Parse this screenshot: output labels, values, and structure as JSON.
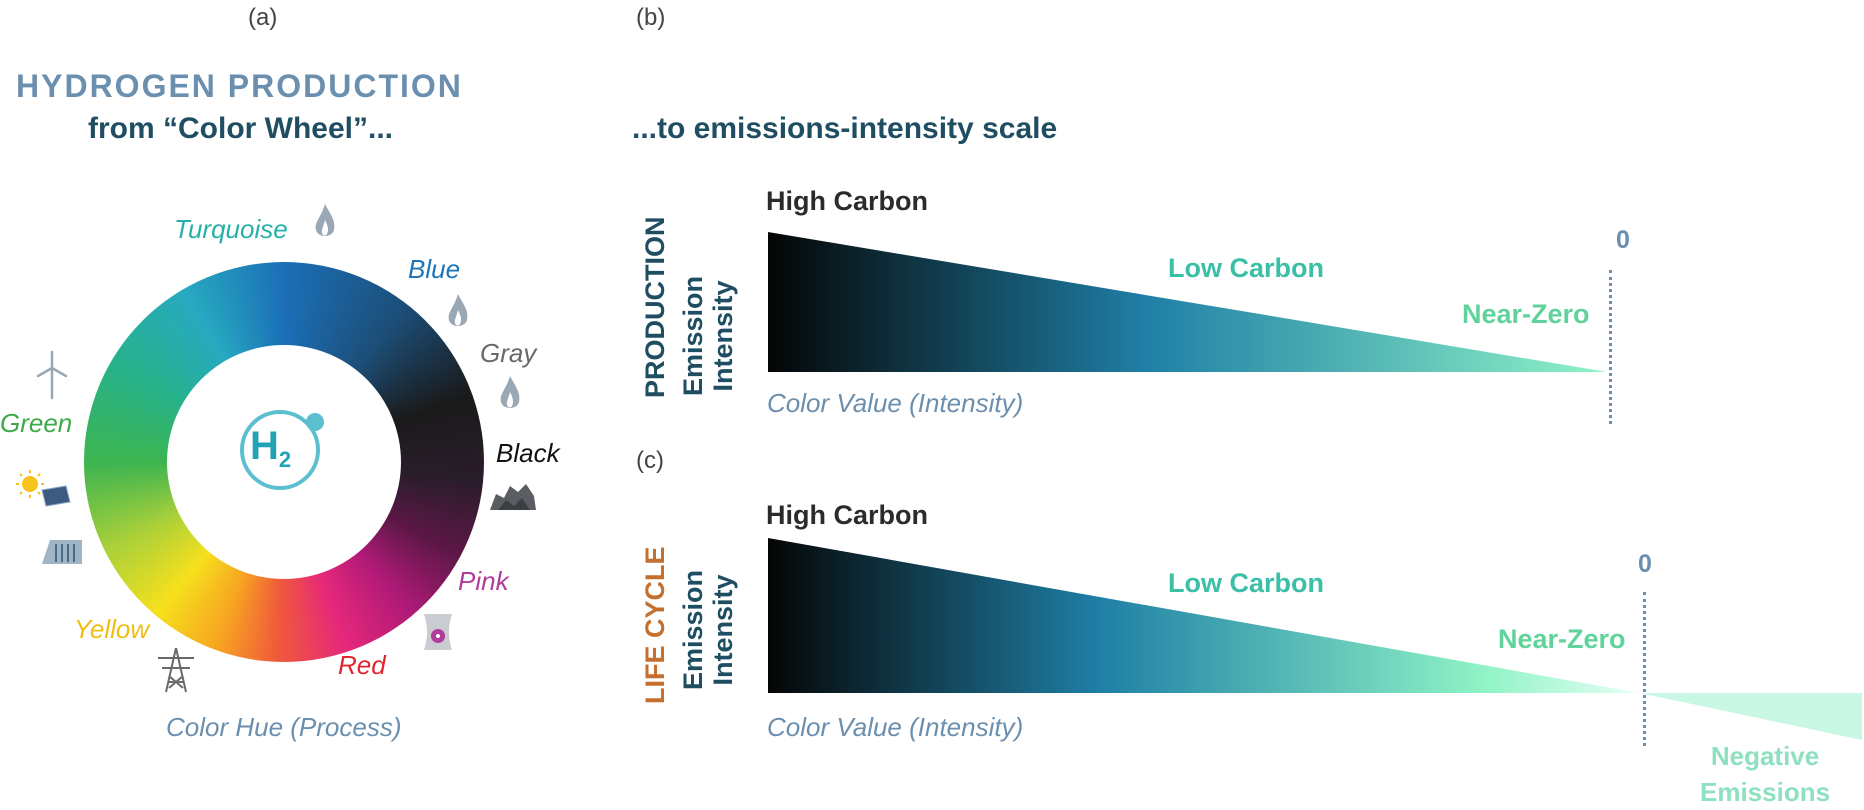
{
  "panel_labels": {
    "a": "(a)",
    "b": "(b)",
    "c": "(c)"
  },
  "left": {
    "title": "HYDROGEN PRODUCTION",
    "subtitle": "from “Color Wheel”...",
    "center_symbol": {
      "letter": "H",
      "subscript": "2"
    },
    "colors": [
      {
        "name": "Turquoise",
        "color": "#2bb3b0",
        "icon": "flame-icon"
      },
      {
        "name": "Blue",
        "color": "#1f74b6",
        "icon": "flame-icon"
      },
      {
        "name": "Gray",
        "color": "#6a6a6a",
        "icon": "flame-icon"
      },
      {
        "name": "Black",
        "color": "#111111",
        "icon": "coal-icon"
      },
      {
        "name": "Pink",
        "color": "#b03c9b",
        "icon": "nuclear-plant-icon"
      },
      {
        "name": "Red",
        "color": "#e0262e",
        "icon": ""
      },
      {
        "name": "Yellow",
        "color": "#f2c200",
        "icon": "power-tower-icon"
      },
      {
        "name": "Green",
        "color": "#3daa48",
        "icon": "wind-turbine-icon"
      }
    ],
    "extra_icons": [
      "solar-panel-icon",
      "hydro-dam-icon"
    ],
    "caption": "Color Hue (Process)"
  },
  "right": {
    "subtitle": "...to emissions-intensity scale",
    "production": {
      "category": "PRODUCTION",
      "metric_line1": "Emission",
      "metric_line2": "Intensity",
      "high": "High Carbon",
      "low": "Low Carbon",
      "near_zero": "Near-Zero",
      "zero": "0",
      "caption": "Color Value (Intensity)"
    },
    "life_cycle": {
      "category": "LIFE CYCLE",
      "metric_line1": "Emission",
      "metric_line2": "Intensity",
      "high": "High Carbon",
      "low": "Low Carbon",
      "near_zero": "Near-Zero",
      "zero": "0",
      "negative_line1": "Negative",
      "negative_line2": "Emissions",
      "caption": "Color Value (Intensity)"
    }
  },
  "colors": {
    "title_blue": "#6b8fae",
    "dark_teal": "#1f4e63",
    "life_cycle_orange": "#c46f2e",
    "gradient": [
      "#050505",
      "#1f7fa6",
      "#8ff3c6"
    ]
  }
}
